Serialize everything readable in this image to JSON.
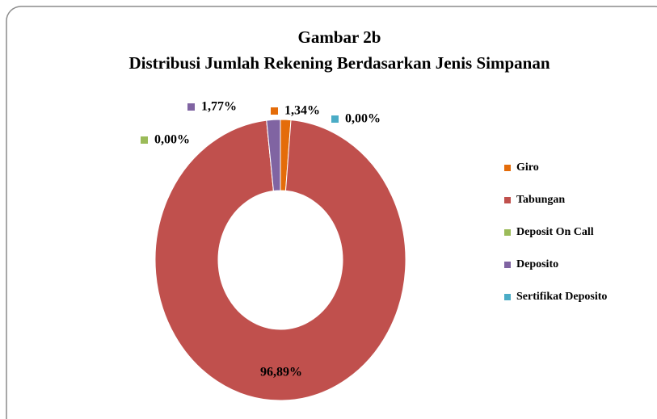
{
  "chart_data": {
    "type": "donut",
    "title": "Gambar 2b",
    "subtitle": "Distribusi  Jumlah Rekening Berdasarkan Jenis Simpanan",
    "categories": [
      "Giro",
      "Tabungan",
      "Deposit On Call",
      "Deposito",
      "Sertifikat Deposito"
    ],
    "values": [
      1.34,
      96.89,
      0.0,
      1.77,
      0.0
    ],
    "value_labels": [
      "1,34%",
      "96,89%",
      "0,00%",
      "1,77%",
      "0,00%"
    ],
    "colors": [
      "#e46c0a",
      "#c0504d",
      "#9bbb59",
      "#8064a2",
      "#4bacc6"
    ],
    "legend": "right"
  }
}
